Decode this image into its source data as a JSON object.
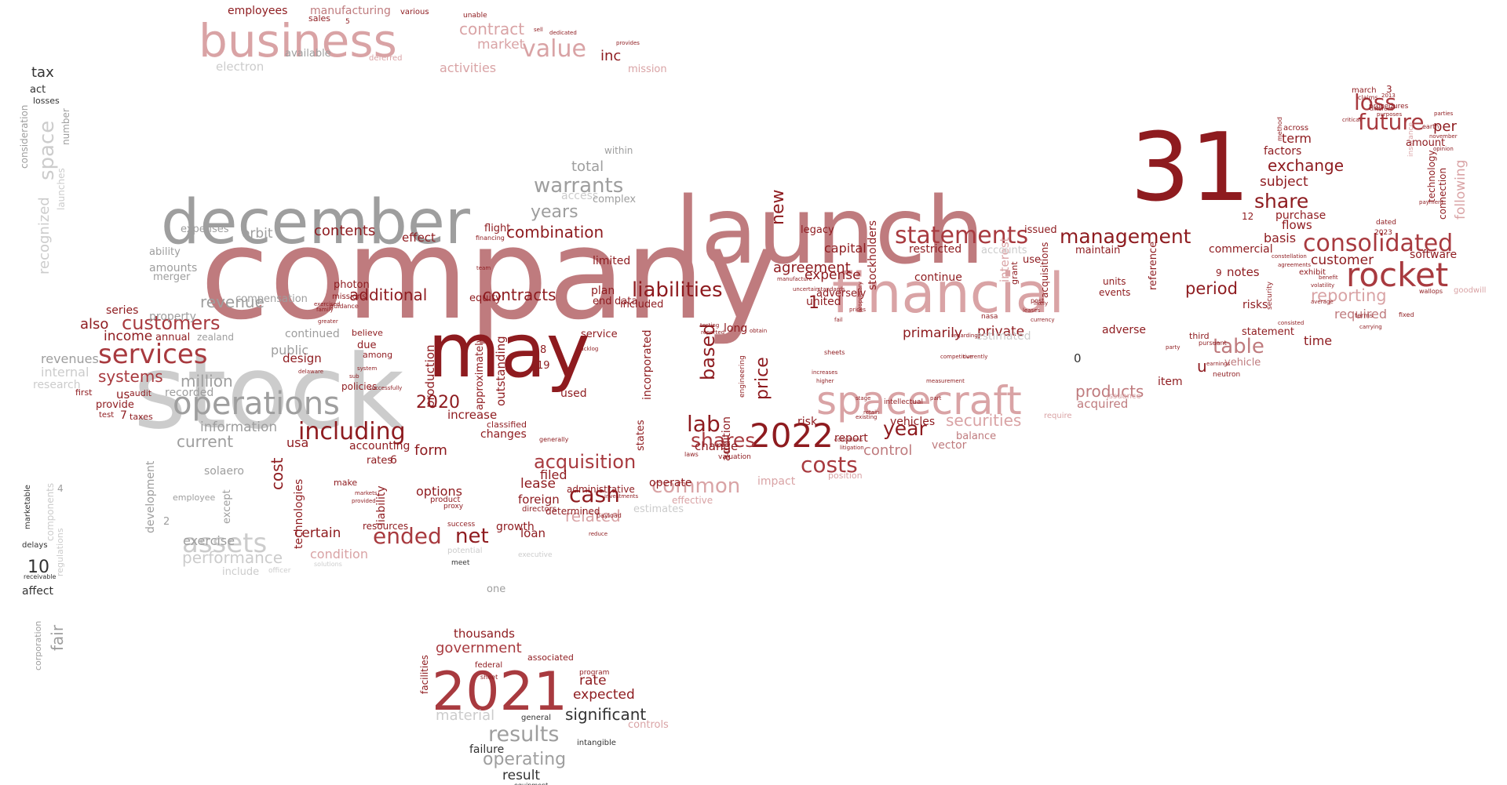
{
  "colors": {
    "dark_red": "#8e1b1f",
    "red": "#a83a3f",
    "rose": "#bf7b7e",
    "light_rose": "#d9a3a5",
    "gray": "#9e9e9e",
    "light_gray": "#cccccc",
    "dark": "#333333"
  },
  "words": [
    "company",
    "launch",
    "stock",
    "may",
    "december",
    "31",
    "financial",
    "2021",
    "spacecraft",
    "business",
    "operations",
    "rocket",
    "2022",
    "consolidated",
    "statements",
    "assets",
    "including",
    "services",
    "liabilities",
    "value",
    "management",
    "results",
    "cash",
    "shares",
    "future",
    "ended",
    "costs",
    "common",
    "warrants",
    "customers",
    "lab",
    "year",
    "net",
    "acquisition",
    "operating",
    "government",
    "significant",
    "revenue",
    "systems",
    "million",
    "information",
    "current",
    "contracts",
    "combination",
    "securities",
    "products",
    "share",
    "exchange",
    "loss",
    "reporting",
    "customer",
    "table",
    "period",
    "agreement",
    "based",
    "price",
    "additional",
    "increase",
    "performance",
    "material",
    "expected",
    "rate",
    "thousands",
    "result",
    "contract",
    "market",
    "inc",
    "employees",
    "manufacturing",
    "tax",
    "space",
    "recognized",
    "fair",
    "10",
    "affect",
    "corporation",
    "development",
    "certain",
    "condition",
    "control",
    "private",
    "primarily",
    "related",
    "form",
    "options",
    "lease",
    "filed",
    "foreign",
    "loan",
    "growth",
    "technologies",
    "cost",
    "public",
    "design",
    "continued",
    "production",
    "orbit",
    "contents",
    "effect",
    "exercise",
    "expenses",
    "ability",
    "amounts",
    "merger",
    "property",
    "income",
    "also",
    "series",
    "revenues",
    "internal",
    "research",
    "new",
    "legacy",
    "capital",
    "expense",
    "united",
    "adversely",
    "stockholders",
    "restricted",
    "continue",
    "interest",
    "acquisitions",
    "maintain",
    "commercial",
    "limited",
    "plan",
    "included",
    "service",
    "estimated",
    "accounts",
    "use",
    "issued",
    "units",
    "events",
    "adverse",
    "reference",
    "item",
    "risks",
    "notes",
    "statement",
    "time",
    "required",
    "software",
    "per",
    "subject",
    "term",
    "factors",
    "flows",
    "purchase",
    "basis",
    "amount",
    "march",
    "technology",
    "following",
    "connection",
    "usa",
    "accounting",
    "rates",
    "6",
    "change",
    "long",
    "risk",
    "report",
    "vehicles",
    "vector",
    "balance",
    "outstanding",
    "incorporated",
    "states",
    "operate",
    "approximately",
    "liability",
    "resources",
    "make",
    "due",
    "believe",
    "among",
    "policies",
    "solaero",
    "except",
    "employee",
    "zealand",
    "audit",
    "provide",
    "first",
    "test",
    "7",
    "taxes",
    "us",
    "annual",
    "2020",
    "19",
    "8",
    "1",
    "0",
    "u",
    "3",
    "9",
    "12",
    "2",
    "4",
    "5",
    "compensation",
    "recorded",
    "ended",
    "years",
    "total",
    "access",
    "complex",
    "within",
    "data",
    "end",
    "used",
    "estimates",
    "effective",
    "classified",
    "changes",
    "determined",
    "administrative",
    "regulations",
    "components",
    "marketable",
    "delays",
    "receivable",
    "consideration",
    "launches",
    "number",
    "losses",
    "act",
    "facilities",
    "federal",
    "sheet",
    "associated",
    "program",
    "general",
    "intangible",
    "failure",
    "one",
    "equipment",
    "controls",
    "activities",
    "mission",
    "electron",
    "available",
    "sales",
    "various",
    "unable",
    "deferred",
    "sell",
    "dedicated",
    "provides",
    "exhibit",
    "procedures",
    "claims",
    "insurance",
    "earth",
    "nasa",
    "position",
    "impact",
    "valuation",
    "success",
    "potential",
    "meet",
    "payload",
    "proxy",
    "product",
    "vehicle",
    "acquired",
    "require",
    "issuance",
    "neutron",
    "goodwill",
    "wallops",
    "fixed",
    "photon",
    "missions",
    "guidance",
    "family",
    "exercised",
    "greater",
    "sub",
    "delaware",
    "markets",
    "provided",
    "system",
    "successfully",
    "equity",
    "flight",
    "financing",
    "team",
    "including",
    "solutions",
    "include",
    "officer",
    "executive",
    "directors",
    "generally",
    "investments",
    "success",
    "backlog",
    "reduce",
    "laws",
    "testing",
    "reported",
    "obtain",
    "engineering",
    "addition",
    "manufacture",
    "uncertain",
    "standards",
    "prices",
    "fail",
    "sheets",
    "higher",
    "increases",
    "retain",
    "existing",
    "litigation",
    "conditions",
    "stage",
    "proprietary",
    "intellectual",
    "part",
    "measurement",
    "competitive",
    "currently",
    "regarding",
    "grant",
    "post",
    "likely",
    "leases",
    "currency",
    "third",
    "pursuant",
    "party",
    "earnings",
    "average",
    "volatility",
    "benefit",
    "terms",
    "carrying",
    "opinion",
    "parties",
    "november",
    "payment",
    "dated",
    "2023",
    "2013",
    "different",
    "purposes",
    "critical",
    "across",
    "method",
    "security",
    "consisted",
    "constellation",
    "agreements"
  ],
  "alt_tokens": {
    "w_inc": "inc",
    "w_sub": "sub"
  }
}
